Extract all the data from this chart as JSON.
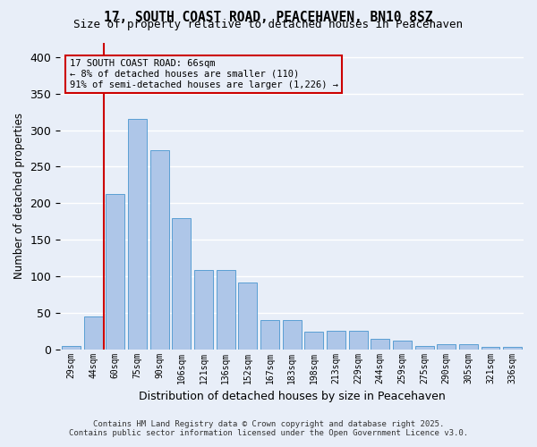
{
  "title_line1": "17, SOUTH COAST ROAD, PEACEHAVEN, BN10 8SZ",
  "title_line2": "Size of property relative to detached houses in Peacehaven",
  "xlabel": "Distribution of detached houses by size in Peacehaven",
  "ylabel": "Number of detached properties",
  "categories": [
    "29sqm",
    "44sqm",
    "60sqm",
    "75sqm",
    "90sqm",
    "106sqm",
    "121sqm",
    "136sqm",
    "152sqm",
    "167sqm",
    "183sqm",
    "198sqm",
    "213sqm",
    "229sqm",
    "244sqm",
    "259sqm",
    "275sqm",
    "290sqm",
    "305sqm",
    "321sqm",
    "336sqm"
  ],
  "values": [
    5,
    45,
    212,
    315,
    272,
    179,
    109,
    109,
    91,
    40,
    40,
    24,
    25,
    25,
    14,
    12,
    5,
    7,
    7,
    3,
    3
  ],
  "bar_color": "#aec6e8",
  "bar_edge_color": "#5a9fd4",
  "background_color": "#e8eef8",
  "grid_color": "#ffffff",
  "annotation_box_color": "#cc0000",
  "annotation_line1": "17 SOUTH COAST ROAD: 66sqm",
  "annotation_line2": "← 8% of detached houses are smaller (110)",
  "annotation_line3": "91% of semi-detached houses are larger (1,226) →",
  "vline_x": 1.5,
  "vline_color": "#cc0000",
  "ylim": [
    0,
    420
  ],
  "yticks": [
    0,
    50,
    100,
    150,
    200,
    250,
    300,
    350,
    400
  ],
  "footnote_line1": "Contains HM Land Registry data © Crown copyright and database right 2025.",
  "footnote_line2": "Contains public sector information licensed under the Open Government Licence v3.0."
}
